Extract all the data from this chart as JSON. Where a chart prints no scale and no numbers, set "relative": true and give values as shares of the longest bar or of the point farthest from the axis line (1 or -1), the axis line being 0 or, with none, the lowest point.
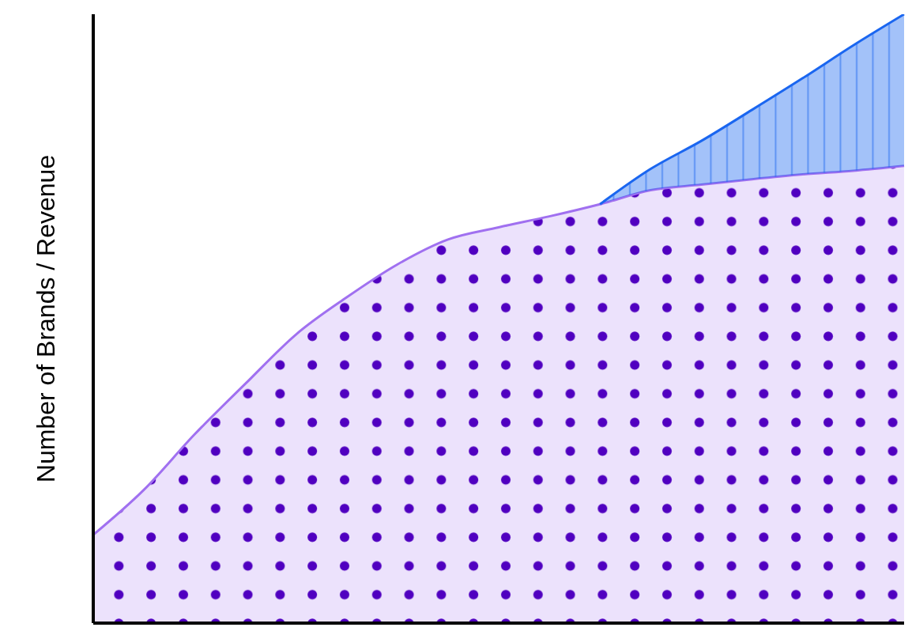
{
  "chart_data": {
    "type": "area",
    "ylabel": "Number of Brands / Revenue",
    "relative": true,
    "stacked": true,
    "grid": false,
    "legend": false,
    "categories": [
      null,
      null,
      null,
      null,
      null,
      null,
      null,
      null,
      null,
      null,
      null,
      null,
      null,
      null,
      null,
      null,
      null
    ],
    "series": [
      {
        "color": "#a070f0",
        "values": [
          0.145,
          0.219,
          0.31,
          0.393,
          0.474,
          0.535,
          0.589,
          0.63,
          0.65,
          0.668,
          0.688,
          0.711,
          0.72,
          0.729,
          0.737,
          0.743,
          0.751
        ]
      },
      {
        "color": "#1a66f0",
        "values": [
          null,
          null,
          null,
          null,
          null,
          null,
          null,
          null,
          null,
          null,
          0,
          0.035,
          0.072,
          0.114,
          0.158,
          0.206,
          0.249
        ]
      }
    ]
  }
}
